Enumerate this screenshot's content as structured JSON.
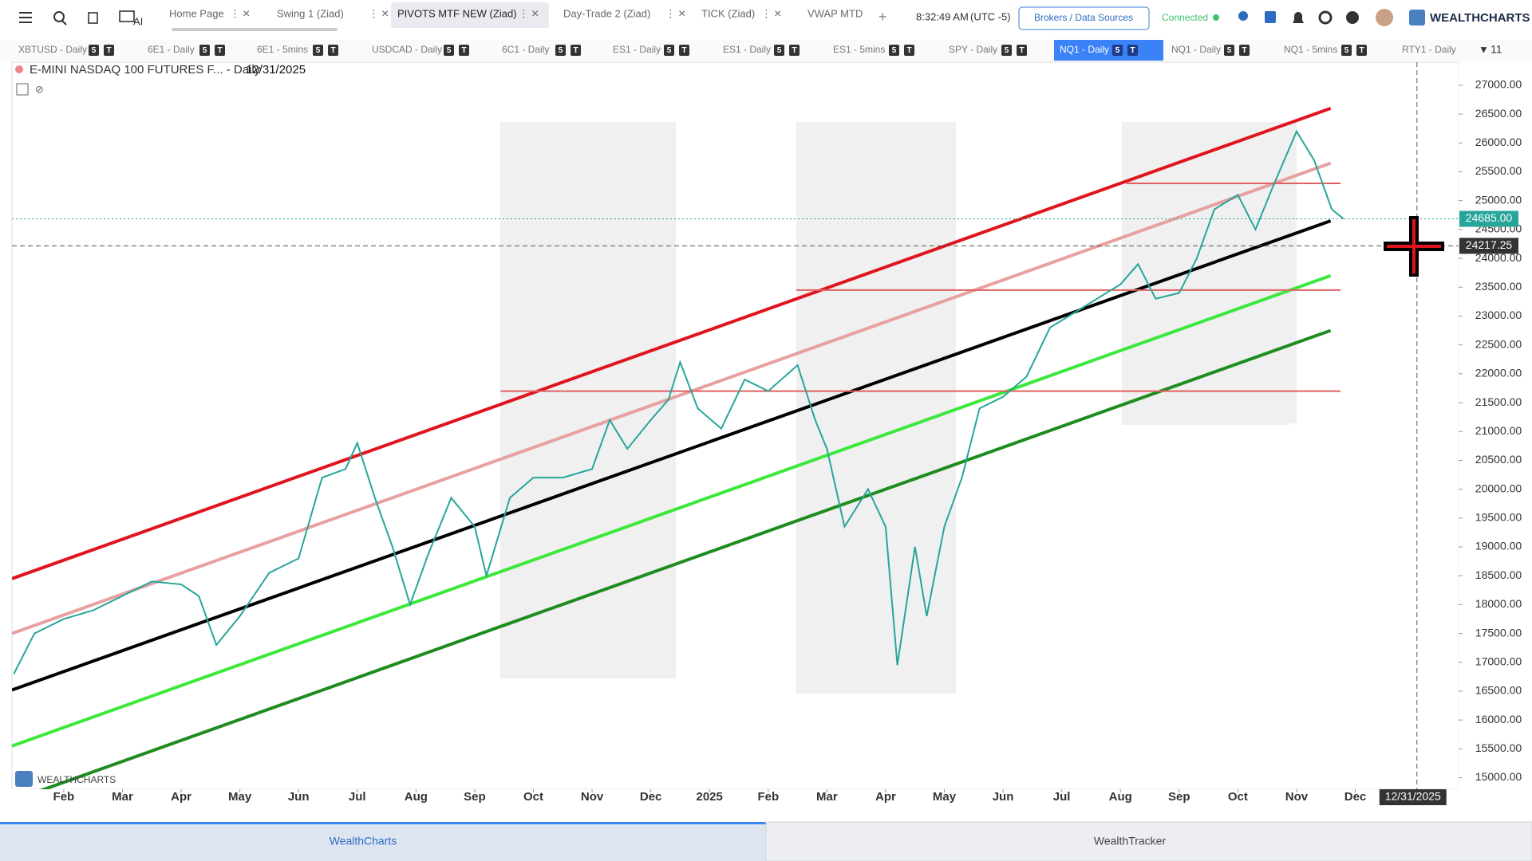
{
  "header": {
    "ai_label": "AI",
    "tabs": [
      "Home Page",
      "Swing 1 (Ziad)",
      "PIVOTS MTF NEW (Ziad)",
      "Day-Trade 2 (Ziad)",
      "TICK (Ziad)",
      "VWAP MTD"
    ],
    "time": "8:32:49 AM",
    "timezone": "(UTC -5)",
    "brokers_button": "Brokers / Data Sources",
    "status": "Connected",
    "logo": "WEALTHCHARTS"
  },
  "symbol_tabs": {
    "items": [
      "XBTUSD - Daily",
      "6E1 - Daily",
      "6E1 - 5mins",
      "USDCAD - Daily",
      "6C1 - Daily",
      "ES1 - Daily",
      "ES1 - Daily",
      "ES1 - 5mins",
      "SPY - Daily",
      "NQ1 - Daily",
      "NQ1 - Daily",
      "NQ1 - 5mins",
      "RTY1 - Daily"
    ],
    "badges": [
      "5",
      "T"
    ],
    "more_count": "11"
  },
  "chart_data": {
    "type": "line",
    "title": "E-MINI NASDAQ 100 FUTURES F... - Daily",
    "subtitle": "12/31/2025",
    "watermark": "WEALTHCHARTS",
    "x": [
      0.15,
      0.5,
      1,
      1.5,
      2,
      2.5,
      3,
      3.3,
      3.6,
      4,
      4.5,
      5,
      5.4,
      5.8,
      6,
      6.3,
      6.6,
      6.9,
      7.2,
      7.6,
      8,
      8.2,
      8.6,
      9,
      9.5,
      10,
      10.3,
      10.6,
      11,
      11.3,
      11.5,
      11.8,
      12.2,
      12.6,
      13,
      13.5,
      13.8,
      14,
      14.3,
      14.7,
      15,
      15.2,
      15.5,
      15.7,
      16,
      16.3,
      16.6,
      17,
      17.4,
      17.8,
      18.2,
      18.6,
      19,
      19.3,
      19.6,
      20,
      20.3,
      20.6,
      21,
      21.3,
      21.6,
      22,
      22.3,
      22.6,
      22.8
    ],
    "values": [
      16800,
      17500,
      17750,
      17900,
      18150,
      18400,
      18350,
      18150,
      17300,
      17800,
      18550,
      18800,
      20200,
      20350,
      20800,
      19850,
      19000,
      18000,
      18850,
      19850,
      19350,
      18500,
      19850,
      20200,
      20200,
      20350,
      21200,
      20700,
      21200,
      21550,
      22200,
      21400,
      21050,
      21900,
      21700,
      22150,
      21200,
      20700,
      19350,
      20000,
      19350,
      16950,
      19000,
      17800,
      19350,
      20200,
      21400,
      21600,
      21950,
      22800,
      23050,
      23300,
      23550,
      23900,
      23300,
      23400,
      24000,
      24850,
      25100,
      24500,
      25250,
      26200,
      25700,
      24850,
      24685
    ],
    "color": "#26a69a",
    "trendlines": [
      {
        "color": "#e0141e",
        "x": [
          0.118,
          22.58
        ],
        "values": [
          18450,
          26600
        ]
      },
      {
        "color": "#e8a0a0",
        "x": [
          0.118,
          22.58
        ],
        "values": [
          17500,
          25650
        ]
      },
      {
        "color": "#000000",
        "x": [
          0.118,
          22.58
        ],
        "values": [
          16520,
          24650
        ]
      },
      {
        "color": "#3de83d",
        "x": [
          0.118,
          22.58
        ],
        "values": [
          15550,
          23700
        ]
      },
      {
        "color": "#1e8c1e",
        "x": [
          0.118,
          22.58
        ],
        "values": [
          14600,
          22750
        ]
      }
    ],
    "levels": [
      {
        "color": "#e06060",
        "value": 25300,
        "x": [
          19.1,
          22.75
        ]
      },
      {
        "color": "#e06060",
        "value": 23450,
        "x": [
          13.48,
          22.75
        ]
      },
      {
        "color": "#e06060",
        "value": 21700,
        "x": [
          8.44,
          22.75
        ]
      }
    ],
    "last_price": {
      "value": 24685,
      "label": "24685.00"
    },
    "crosshair": {
      "value": 24217.25,
      "label": "24217.25",
      "x": 24.05
    },
    "xlim": [
      0.118,
      24.76
    ],
    "ylim": [
      14800,
      27400
    ],
    "xticks": [
      {
        "value": 1,
        "label": "Feb"
      },
      {
        "value": 2,
        "label": "Mar"
      },
      {
        "value": 3,
        "label": "Apr"
      },
      {
        "value": 4,
        "label": "May"
      },
      {
        "value": 5,
        "label": "Jun"
      },
      {
        "value": 6,
        "label": "Jul"
      },
      {
        "value": 7,
        "label": "Aug"
      },
      {
        "value": 8,
        "label": "Sep"
      },
      {
        "value": 9,
        "label": "Oct"
      },
      {
        "value": 10,
        "label": "Nov"
      },
      {
        "value": 11,
        "label": "Dec"
      },
      {
        "value": 12,
        "label": "2025"
      },
      {
        "value": 13,
        "label": "Feb"
      },
      {
        "value": 14,
        "label": "Mar"
      },
      {
        "value": 15,
        "label": "Apr"
      },
      {
        "value": 16,
        "label": "May"
      },
      {
        "value": 17,
        "label": "Jun"
      },
      {
        "value": 18,
        "label": "Jul"
      },
      {
        "value": 19,
        "label": "Aug"
      },
      {
        "value": 20,
        "label": "Sep"
      },
      {
        "value": 21,
        "label": "Oct"
      },
      {
        "value": 22,
        "label": "Nov"
      },
      {
        "value": 23,
        "label": "Dec"
      }
    ],
    "yticks": [
      {
        "value": 15000,
        "label": "15000.00"
      },
      {
        "value": 15500,
        "label": "15500.00"
      },
      {
        "value": 16000,
        "label": "16000.00"
      },
      {
        "value": 16500,
        "label": "16500.00"
      },
      {
        "value": 17000,
        "label": "17000.00"
      },
      {
        "value": 17500,
        "label": "17500.00"
      },
      {
        "value": 18000,
        "label": "18000.00"
      },
      {
        "value": 18500,
        "label": "18500.00"
      },
      {
        "value": 19000,
        "label": "19000.00"
      },
      {
        "value": 19500,
        "label": "19500.00"
      },
      {
        "value": 20000,
        "label": "20000.00"
      },
      {
        "value": 20500,
        "label": "20500.00"
      },
      {
        "value": 21000,
        "label": "21000.00"
      },
      {
        "value": 21500,
        "label": "21500.00"
      },
      {
        "value": 22000,
        "label": "22000.00"
      },
      {
        "value": 22500,
        "label": "22500.00"
      },
      {
        "value": 23000,
        "label": "23000.00"
      },
      {
        "value": 23500,
        "label": "23500.00"
      },
      {
        "value": 24000,
        "label": "24000.00"
      },
      {
        "value": 24500,
        "label": "24500.00"
      },
      {
        "value": 25000,
        "label": "25000.00"
      },
      {
        "value": 25500,
        "label": "25500.00"
      },
      {
        "value": 26000,
        "label": "26000.00"
      },
      {
        "value": 26500,
        "label": "26500.00"
      },
      {
        "value": 27000,
        "label": "27000.00"
      }
    ]
  },
  "footer_tabs": [
    "WealthCharts",
    "WealthTracker"
  ]
}
